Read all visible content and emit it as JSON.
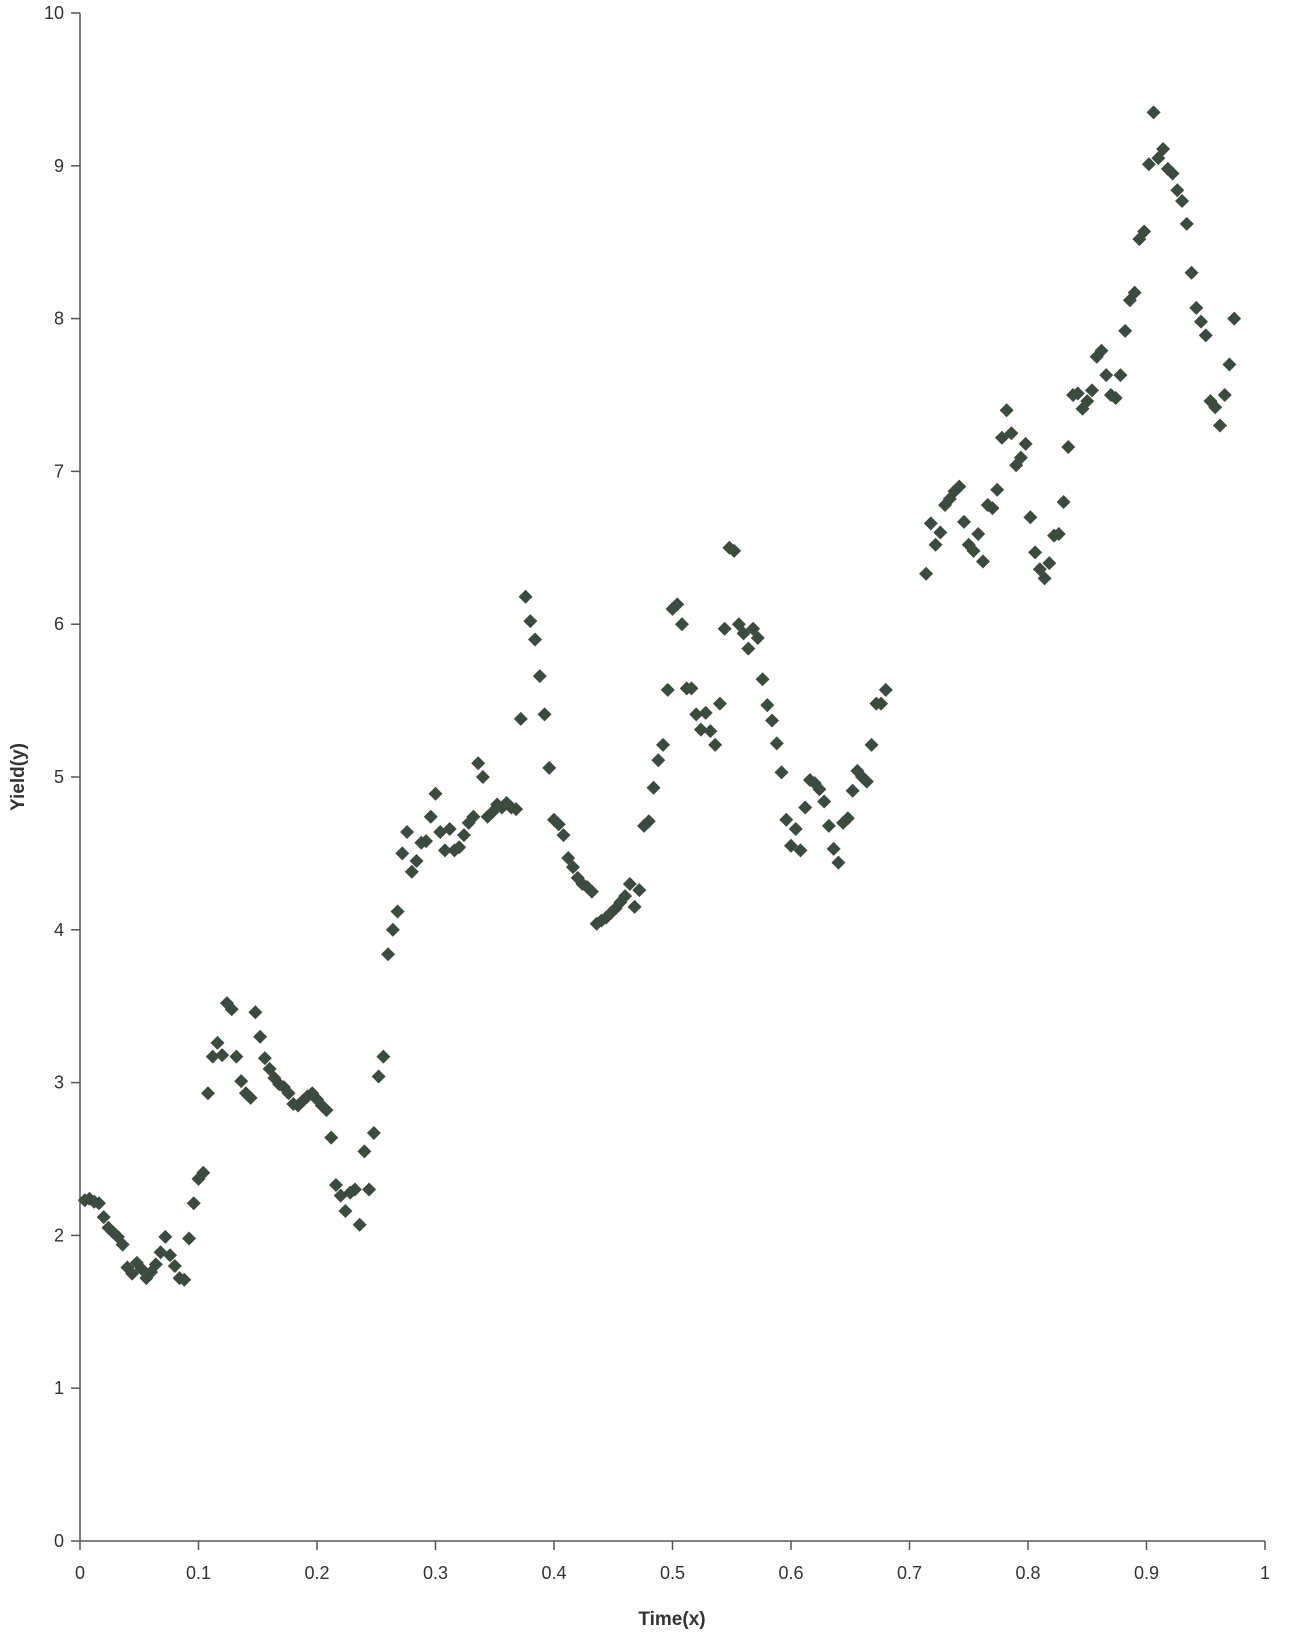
{
  "chart_data": {
    "type": "scatter",
    "title": "",
    "xlabel": "Time(x)",
    "ylabel": "Yield(y)",
    "xlim": [
      0,
      1
    ],
    "ylim": [
      0,
      10
    ],
    "xticks": [
      0,
      0.1,
      0.2,
      0.3,
      0.4,
      0.5,
      0.6,
      0.7,
      0.8,
      0.9,
      1
    ],
    "yticks": [
      0,
      1,
      2,
      3,
      4,
      5,
      6,
      7,
      8,
      9,
      10
    ],
    "xtick_labels": [
      "0",
      "0.1",
      "0.2",
      "0.3",
      "0.4",
      "0.5",
      "0.6",
      "0.7",
      "0.8",
      "0.9",
      "1"
    ],
    "ytick_labels": [
      "0",
      "1",
      "2",
      "3",
      "4",
      "5",
      "6",
      "7",
      "8",
      "9",
      "10"
    ],
    "grid": false,
    "legend": "none",
    "marker": "diamond",
    "marker_color": "#3d4a3f",
    "axis_color": "#555555",
    "series": [
      {
        "points": [
          [
            0.004,
            2.23
          ],
          [
            0.008,
            2.24
          ],
          [
            0.012,
            2.22
          ],
          [
            0.016,
            2.21
          ],
          [
            0.02,
            2.12
          ],
          [
            0.024,
            2.05
          ],
          [
            0.028,
            2.02
          ],
          [
            0.032,
            1.99
          ],
          [
            0.036,
            1.94
          ],
          [
            0.04,
            1.79
          ],
          [
            0.044,
            1.75
          ],
          [
            0.048,
            1.82
          ],
          [
            0.052,
            1.78
          ],
          [
            0.056,
            1.72
          ],
          [
            0.06,
            1.76
          ],
          [
            0.064,
            1.81
          ],
          [
            0.068,
            1.89
          ],
          [
            0.072,
            1.99
          ],
          [
            0.076,
            1.87
          ],
          [
            0.08,
            1.8
          ],
          [
            0.084,
            1.72
          ],
          [
            0.088,
            1.71
          ],
          [
            0.092,
            1.98
          ],
          [
            0.096,
            2.21
          ],
          [
            0.1,
            2.37
          ],
          [
            0.104,
            2.41
          ],
          [
            0.108,
            2.93
          ],
          [
            0.112,
            3.17
          ],
          [
            0.116,
            3.26
          ],
          [
            0.12,
            3.18
          ],
          [
            0.124,
            3.52
          ],
          [
            0.128,
            3.48
          ],
          [
            0.132,
            3.17
          ],
          [
            0.136,
            3.01
          ],
          [
            0.14,
            2.93
          ],
          [
            0.144,
            2.9
          ],
          [
            0.148,
            3.46
          ],
          [
            0.152,
            3.3
          ],
          [
            0.156,
            3.16
          ],
          [
            0.16,
            3.09
          ],
          [
            0.164,
            3.03
          ],
          [
            0.168,
            2.99
          ],
          [
            0.172,
            2.97
          ],
          [
            0.176,
            2.93
          ],
          [
            0.18,
            2.86
          ],
          [
            0.184,
            2.85
          ],
          [
            0.188,
            2.88
          ],
          [
            0.192,
            2.91
          ],
          [
            0.196,
            2.93
          ],
          [
            0.2,
            2.89
          ],
          [
            0.204,
            2.85
          ],
          [
            0.208,
            2.82
          ],
          [
            0.212,
            2.64
          ],
          [
            0.216,
            2.33
          ],
          [
            0.22,
            2.26
          ],
          [
            0.224,
            2.16
          ],
          [
            0.228,
            2.28
          ],
          [
            0.232,
            2.3
          ],
          [
            0.236,
            2.07
          ],
          [
            0.24,
            2.55
          ],
          [
            0.244,
            2.3
          ],
          [
            0.248,
            2.67
          ],
          [
            0.252,
            3.04
          ],
          [
            0.256,
            3.17
          ],
          [
            0.26,
            3.84
          ],
          [
            0.264,
            4.0
          ],
          [
            0.268,
            4.12
          ],
          [
            0.272,
            4.5
          ],
          [
            0.276,
            4.64
          ],
          [
            0.28,
            4.38
          ],
          [
            0.284,
            4.45
          ],
          [
            0.288,
            4.57
          ],
          [
            0.292,
            4.58
          ],
          [
            0.296,
            4.74
          ],
          [
            0.3,
            4.89
          ],
          [
            0.304,
            4.64
          ],
          [
            0.308,
            4.52
          ],
          [
            0.312,
            4.66
          ],
          [
            0.316,
            4.52
          ],
          [
            0.32,
            4.54
          ],
          [
            0.324,
            4.62
          ],
          [
            0.328,
            4.7
          ],
          [
            0.332,
            4.74
          ],
          [
            0.336,
            5.09
          ],
          [
            0.34,
            5.0
          ],
          [
            0.344,
            4.74
          ],
          [
            0.348,
            4.77
          ],
          [
            0.352,
            4.82
          ],
          [
            0.356,
            4.8
          ],
          [
            0.36,
            4.83
          ],
          [
            0.364,
            4.8
          ],
          [
            0.368,
            4.79
          ],
          [
            0.372,
            5.38
          ],
          [
            0.376,
            6.18
          ],
          [
            0.38,
            6.02
          ],
          [
            0.384,
            5.9
          ],
          [
            0.388,
            5.66
          ],
          [
            0.392,
            5.41
          ],
          [
            0.396,
            5.06
          ],
          [
            0.4,
            4.72
          ],
          [
            0.404,
            4.69
          ],
          [
            0.408,
            4.62
          ],
          [
            0.412,
            4.47
          ],
          [
            0.416,
            4.41
          ],
          [
            0.42,
            4.34
          ],
          [
            0.424,
            4.3
          ],
          [
            0.428,
            4.28
          ],
          [
            0.432,
            4.25
          ],
          [
            0.436,
            4.04
          ],
          [
            0.44,
            4.06
          ],
          [
            0.444,
            4.08
          ],
          [
            0.448,
            4.11
          ],
          [
            0.452,
            4.14
          ],
          [
            0.456,
            4.18
          ],
          [
            0.46,
            4.22
          ],
          [
            0.464,
            4.3
          ],
          [
            0.468,
            4.15
          ],
          [
            0.472,
            4.26
          ],
          [
            0.476,
            4.68
          ],
          [
            0.48,
            4.71
          ],
          [
            0.484,
            4.93
          ],
          [
            0.488,
            5.11
          ],
          [
            0.492,
            5.21
          ],
          [
            0.496,
            5.57
          ],
          [
            0.5,
            6.1
          ],
          [
            0.504,
            6.13
          ],
          [
            0.508,
            6.0
          ],
          [
            0.512,
            5.58
          ],
          [
            0.516,
            5.58
          ],
          [
            0.52,
            5.41
          ],
          [
            0.524,
            5.31
          ],
          [
            0.528,
            5.42
          ],
          [
            0.532,
            5.3
          ],
          [
            0.536,
            5.21
          ],
          [
            0.54,
            5.48
          ],
          [
            0.544,
            5.97
          ],
          [
            0.548,
            6.5
          ],
          [
            0.552,
            6.48
          ],
          [
            0.556,
            6.0
          ],
          [
            0.56,
            5.94
          ],
          [
            0.564,
            5.84
          ],
          [
            0.568,
            5.97
          ],
          [
            0.572,
            5.91
          ],
          [
            0.576,
            5.64
          ],
          [
            0.58,
            5.47
          ],
          [
            0.584,
            5.37
          ],
          [
            0.588,
            5.22
          ],
          [
            0.592,
            5.03
          ],
          [
            0.596,
            4.72
          ],
          [
            0.6,
            4.55
          ],
          [
            0.604,
            4.66
          ],
          [
            0.608,
            4.52
          ],
          [
            0.612,
            4.8
          ],
          [
            0.616,
            4.98
          ],
          [
            0.62,
            4.96
          ],
          [
            0.624,
            4.92
          ],
          [
            0.628,
            4.84
          ],
          [
            0.632,
            4.68
          ],
          [
            0.636,
            4.53
          ],
          [
            0.64,
            4.44
          ],
          [
            0.644,
            4.7
          ],
          [
            0.648,
            4.73
          ],
          [
            0.652,
            4.91
          ],
          [
            0.656,
            5.04
          ],
          [
            0.66,
            5.0
          ],
          [
            0.664,
            4.97
          ],
          [
            0.668,
            5.21
          ],
          [
            0.672,
            5.48
          ],
          [
            0.676,
            5.48
          ],
          [
            0.68,
            5.57
          ],
          [
            0.714,
            6.33
          ],
          [
            0.718,
            6.66
          ],
          [
            0.722,
            6.52
          ],
          [
            0.726,
            6.6
          ],
          [
            0.73,
            6.78
          ],
          [
            0.734,
            6.82
          ],
          [
            0.738,
            6.87
          ],
          [
            0.742,
            6.9
          ],
          [
            0.746,
            6.67
          ],
          [
            0.75,
            6.52
          ],
          [
            0.754,
            6.48
          ],
          [
            0.758,
            6.59
          ],
          [
            0.762,
            6.41
          ],
          [
            0.766,
            6.78
          ],
          [
            0.77,
            6.76
          ],
          [
            0.774,
            6.88
          ],
          [
            0.778,
            7.22
          ],
          [
            0.782,
            7.4
          ],
          [
            0.786,
            7.25
          ],
          [
            0.79,
            7.04
          ],
          [
            0.794,
            7.09
          ],
          [
            0.798,
            7.18
          ],
          [
            0.802,
            6.7
          ],
          [
            0.806,
            6.47
          ],
          [
            0.81,
            6.36
          ],
          [
            0.814,
            6.3
          ],
          [
            0.818,
            6.4
          ],
          [
            0.822,
            6.58
          ],
          [
            0.826,
            6.59
          ],
          [
            0.83,
            6.8
          ],
          [
            0.834,
            7.16
          ],
          [
            0.838,
            7.5
          ],
          [
            0.842,
            7.51
          ],
          [
            0.846,
            7.41
          ],
          [
            0.85,
            7.46
          ],
          [
            0.854,
            7.53
          ],
          [
            0.858,
            7.75
          ],
          [
            0.862,
            7.79
          ],
          [
            0.866,
            7.63
          ],
          [
            0.87,
            7.5
          ],
          [
            0.874,
            7.48
          ],
          [
            0.878,
            7.63
          ],
          [
            0.882,
            7.92
          ],
          [
            0.886,
            8.12
          ],
          [
            0.89,
            8.17
          ],
          [
            0.894,
            8.52
          ],
          [
            0.898,
            8.57
          ],
          [
            0.902,
            9.01
          ],
          [
            0.906,
            9.35
          ],
          [
            0.91,
            9.05
          ],
          [
            0.914,
            9.11
          ],
          [
            0.918,
            8.98
          ],
          [
            0.922,
            8.95
          ],
          [
            0.926,
            8.84
          ],
          [
            0.93,
            8.77
          ],
          [
            0.934,
            8.62
          ],
          [
            0.938,
            8.3
          ],
          [
            0.942,
            8.07
          ],
          [
            0.946,
            7.98
          ],
          [
            0.95,
            7.89
          ],
          [
            0.954,
            7.46
          ],
          [
            0.958,
            7.42
          ],
          [
            0.962,
            7.3
          ],
          [
            0.966,
            7.5
          ],
          [
            0.97,
            7.7
          ],
          [
            0.974,
            8.0
          ]
        ]
      }
    ]
  }
}
